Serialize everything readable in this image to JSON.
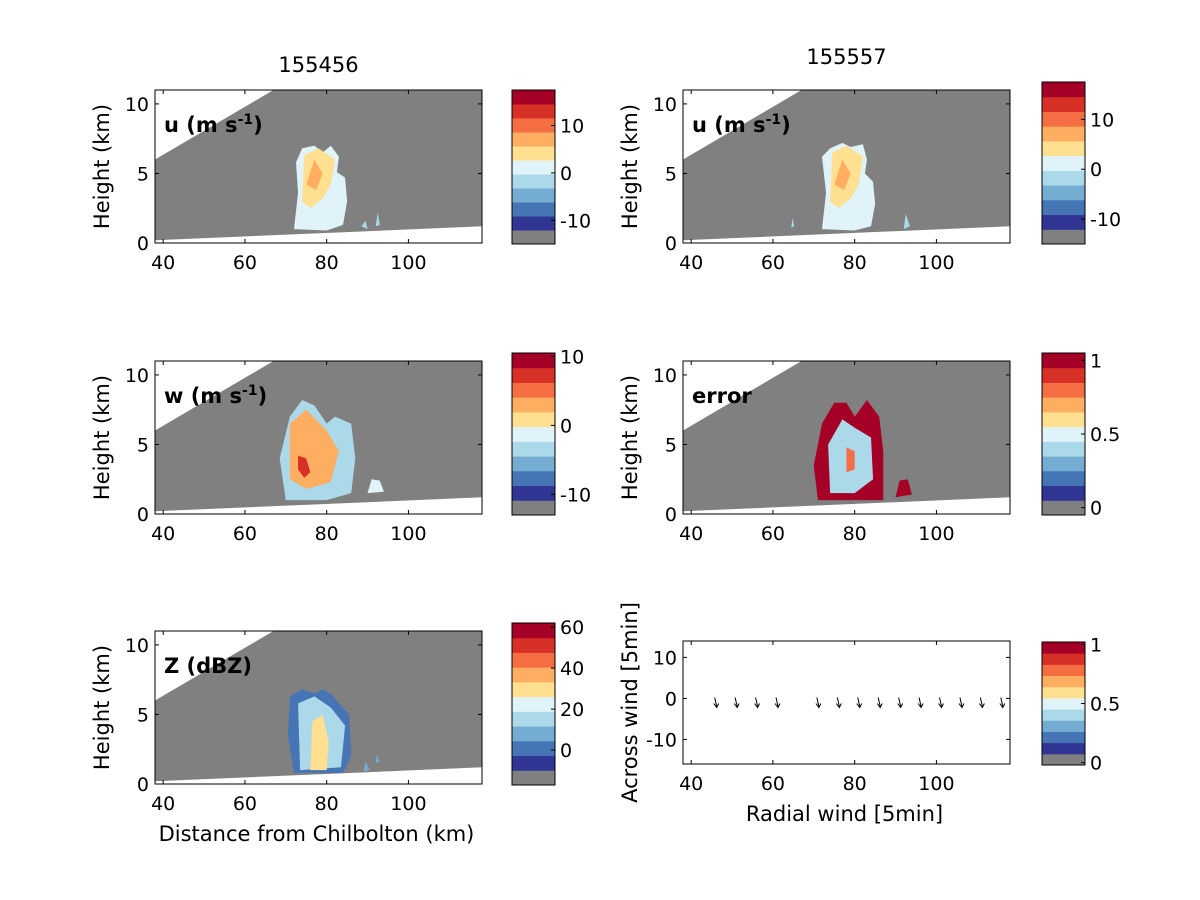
{
  "palette": [
    "#808080",
    "#313695",
    "#4575b4",
    "#74add1",
    "#abd9e9",
    "#e0f3f8",
    "#fee090",
    "#fdae61",
    "#f46d43",
    "#d73027",
    "#a50026"
  ],
  "chart_data": [
    {
      "type": "heatmap",
      "panel": "u-155456",
      "title": "155456",
      "annotation": "u (m s",
      "annotation_sup": "-1",
      "annotation_end": ")",
      "ylabel": "Height (km)",
      "xlabel": "",
      "xlim": [
        38,
        118
      ],
      "ylim": [
        0,
        11
      ],
      "xticks": [
        "40",
        "60",
        "80",
        "100"
      ],
      "yticks": [
        "0",
        "5",
        "10"
      ],
      "colorbar": {
        "ticks": [
          "10",
          "0",
          "-10"
        ]
      }
    },
    {
      "type": "heatmap",
      "panel": "u-155557",
      "title": "155557",
      "annotation": "u (m s",
      "annotation_sup": "-1",
      "annotation_end": ")",
      "ylabel": "Height (km)",
      "xlabel": "",
      "xlim": [
        38,
        118
      ],
      "ylim": [
        0,
        11
      ],
      "xticks": [
        "40",
        "60",
        "80",
        "100"
      ],
      "yticks": [
        "0",
        "5",
        "10"
      ],
      "colorbar": {
        "ticks": [
          "10",
          "0",
          "-10"
        ]
      }
    },
    {
      "type": "heatmap",
      "panel": "w-155456",
      "title": "",
      "annotation": "w (m s",
      "annotation_sup": "-1",
      "annotation_end": ")",
      "ylabel": "Height (km)",
      "xlabel": "",
      "xlim": [
        38,
        118
      ],
      "ylim": [
        0,
        11
      ],
      "xticks": [
        "40",
        "60",
        "80",
        "100"
      ],
      "yticks": [
        "0",
        "5",
        "10"
      ],
      "colorbar": {
        "ticks": [
          "10",
          "0",
          "-10"
        ]
      }
    },
    {
      "type": "heatmap",
      "panel": "error-155557",
      "title": "",
      "annotation": "error",
      "annotation_sup": "",
      "annotation_end": "",
      "ylabel": "Height (km)",
      "xlabel": "",
      "xlim": [
        38,
        118
      ],
      "ylim": [
        0,
        11
      ],
      "xticks": [
        "40",
        "60",
        "80",
        "100"
      ],
      "yticks": [
        "0",
        "5",
        "10"
      ],
      "colorbar": {
        "ticks": [
          "1",
          "0.5",
          "0"
        ]
      }
    },
    {
      "type": "heatmap",
      "panel": "Z-155456",
      "title": "",
      "annotation": "Z (dBZ)",
      "annotation_sup": "",
      "annotation_end": "",
      "ylabel": "Height (km)",
      "xlabel": "Distance from Chilbolton (km)",
      "xlim": [
        38,
        118
      ],
      "ylim": [
        0,
        11
      ],
      "xticks": [
        "40",
        "60",
        "80",
        "100"
      ],
      "yticks": [
        "0",
        "5",
        "10"
      ],
      "colorbar": {
        "ticks": [
          "60",
          "40",
          "20",
          "0"
        ]
      }
    },
    {
      "type": "scatter",
      "panel": "quiver",
      "title": "",
      "annotation": "",
      "annotation_sup": "",
      "annotation_end": "",
      "ylabel": "Across wind [5min]",
      "xlabel": "Radial wind [5min]",
      "xlim": [
        38,
        118
      ],
      "ylim": [
        -16,
        14
      ],
      "xticks": [
        "40",
        "60",
        "80",
        "100"
      ],
      "yticks": [
        "10",
        "0",
        "-10"
      ],
      "arrows_x": [
        46,
        51,
        56,
        61,
        71,
        76,
        81,
        86,
        91,
        96,
        101,
        106,
        111,
        116
      ],
      "arrows_y": [
        -1,
        -1,
        -1,
        -1,
        -1,
        -1,
        -1,
        -1,
        -1,
        -1,
        -1,
        -1,
        -1,
        -1
      ],
      "colorbar": {
        "ticks": [
          "1",
          "0.5",
          "0"
        ]
      }
    }
  ]
}
